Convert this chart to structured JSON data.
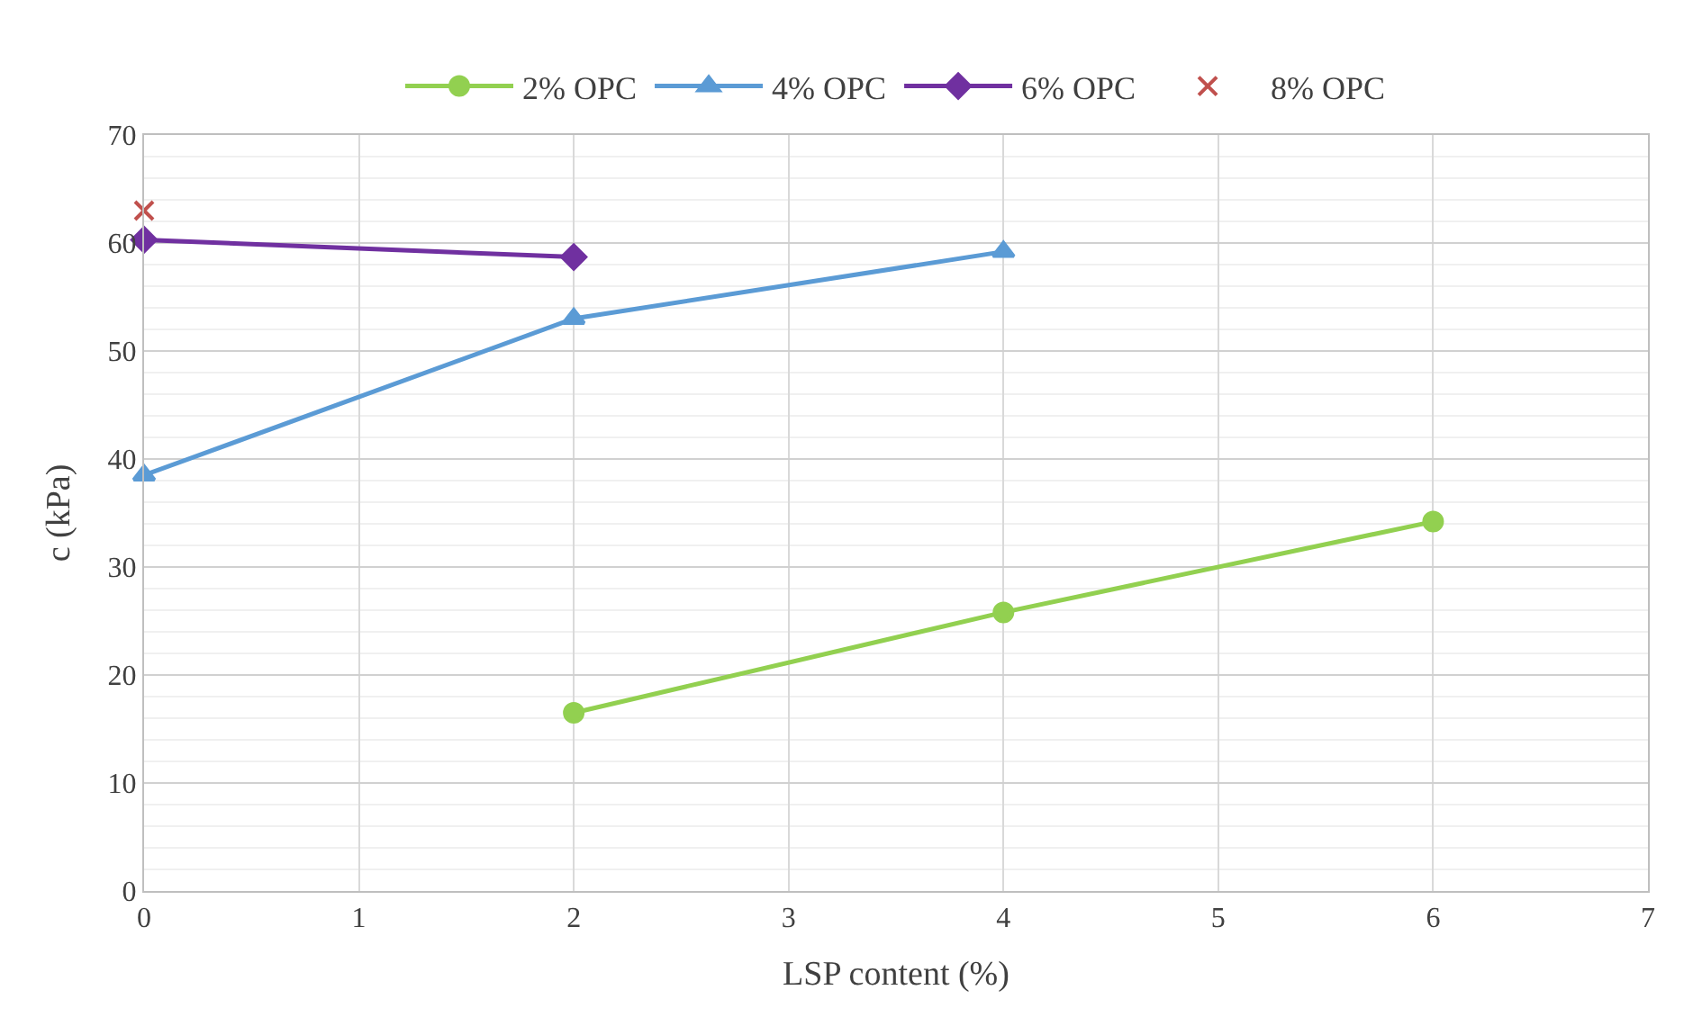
{
  "chart_data": {
    "type": "line",
    "xlabel": "LSP content (%)",
    "ylabel": "c (kPa)",
    "xlim": [
      0,
      7
    ],
    "xticks": [
      0,
      1,
      2,
      3,
      4,
      5,
      6,
      7
    ],
    "ylim": [
      0,
      70
    ],
    "yticks": [
      0,
      10,
      20,
      30,
      40,
      50,
      60,
      70
    ],
    "grid": true,
    "legend": "top",
    "series": [
      {
        "name": "2% OPC",
        "color": "#92d050",
        "marker": "circle",
        "x": [
          2,
          4,
          6
        ],
        "values": [
          16.5,
          25.8,
          34.2
        ]
      },
      {
        "name": "4% OPC",
        "color": "#5b9bd5",
        "marker": "triangle",
        "x": [
          0,
          2,
          4
        ],
        "values": [
          38.5,
          53,
          59.2
        ]
      },
      {
        "name": "6% OPC",
        "color": "#7030a0",
        "marker": "diamond",
        "x": [
          0,
          2
        ],
        "values": [
          60.3,
          58.7
        ]
      },
      {
        "name": "8% OPC",
        "color": "#c0504d",
        "marker": "cross",
        "type": "scatter",
        "x": [
          0
        ],
        "values": [
          63
        ]
      }
    ]
  }
}
